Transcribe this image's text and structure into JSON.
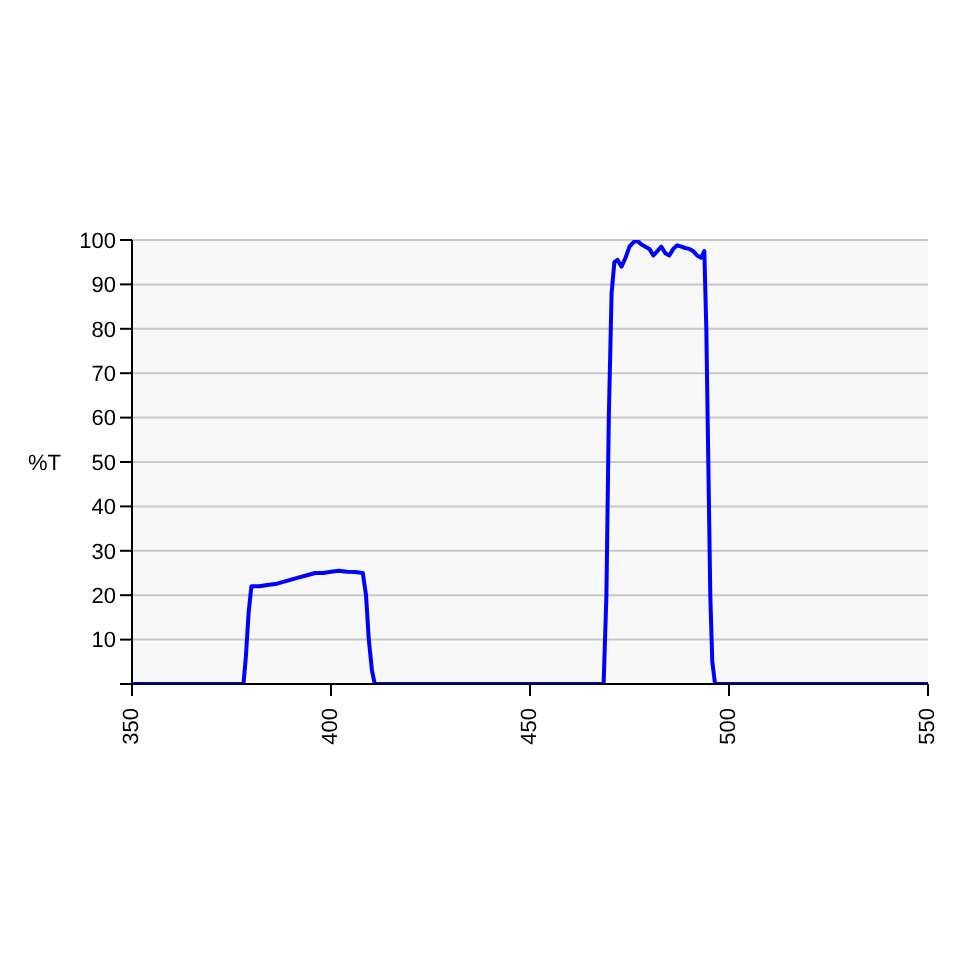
{
  "chart_data": {
    "type": "line",
    "ylabel": "%T",
    "xlim": [
      350,
      550
    ],
    "xticks": [
      350,
      400,
      450,
      500,
      550
    ],
    "ylim": [
      0,
      100
    ],
    "yticks": [
      {
        "value": 0,
        "label": null
      },
      10,
      20,
      30,
      40,
      50,
      60,
      70,
      80,
      90,
      100
    ],
    "grid": "y",
    "marker": "none",
    "line_style": "solid",
    "series": [
      {
        "color": "#0000ff",
        "x": [
          350,
          378,
          378.6,
          379.3,
          380,
          382,
          384,
          386,
          388,
          390,
          392,
          394,
          396,
          398,
          400,
          402,
          404,
          406,
          408,
          408.8,
          409.5,
          410.3,
          411,
          430,
          450,
          468.5,
          469.2,
          469.8,
          470.5,
          471.2,
          472,
          473,
          474,
          475,
          476,
          477,
          478,
          479,
          480,
          481,
          482,
          483,
          484,
          485,
          486,
          487,
          488,
          489,
          490,
          491,
          492,
          493,
          493.8,
          494.3,
          494.8,
          495.3,
          495.8,
          496.5,
          500,
          550
        ],
        "values": [
          0,
          0,
          6,
          16,
          22,
          22,
          22.3,
          22.5,
          23,
          23.5,
          24,
          24.5,
          25,
          25,
          25.3,
          25.5,
          25.3,
          25.2,
          25,
          20,
          10,
          3,
          0,
          0,
          0,
          0,
          20,
          60,
          88,
          95,
          95.5,
          94,
          96,
          98.5,
          99.5,
          99.8,
          99,
          98.5,
          98,
          96.5,
          97.5,
          98.5,
          97,
          96.5,
          98,
          98.8,
          98.5,
          98.2,
          98,
          97.5,
          96.5,
          96,
          97.5,
          80,
          50,
          20,
          5,
          0,
          0,
          0
        ]
      }
    ]
  }
}
